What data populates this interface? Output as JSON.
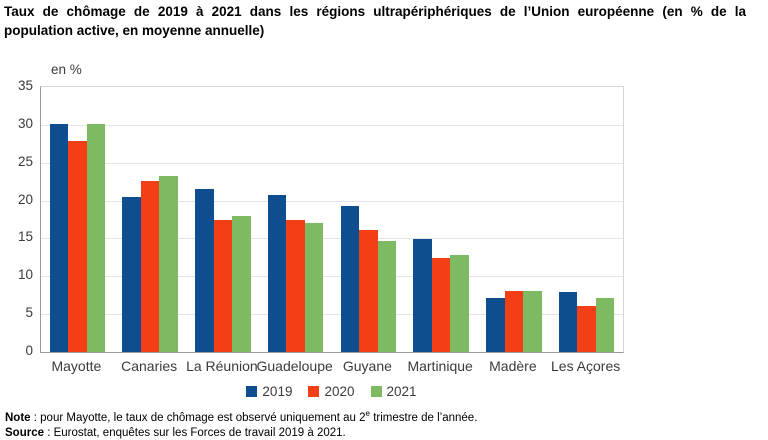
{
  "title": {
    "line1": "Taux de chômage de 2019 à 2021 dans les régions ultrapériphériques de l’Union européenne (en % de la",
    "line2": "population active, en moyenne annuelle)"
  },
  "chart_data": {
    "type": "bar",
    "title": "Taux de chômage de 2019 à 2021 dans les régions ultrapériphériques de l’Union européenne (en % de la population active, en moyenne annuelle)",
    "unit_label": "en %",
    "categories": [
      "Mayotte",
      "Canaries",
      "La Réunion",
      "Guadeloupe",
      "Guyane",
      "Martinique",
      "Madère",
      "Les Açores"
    ],
    "series": [
      {
        "name": "2019",
        "color": "#0E4D8E",
        "values": [
          30.1,
          20.5,
          21.5,
          20.7,
          19.3,
          14.9,
          7.1,
          7.9
        ]
      },
      {
        "name": "2020",
        "color": "#F43E16",
        "values": [
          27.9,
          22.6,
          17.4,
          17.5,
          16.1,
          12.4,
          8.1,
          6.1
        ]
      },
      {
        "name": "2021",
        "color": "#7DBA61",
        "values": [
          30.1,
          23.2,
          17.9,
          17.1,
          14.6,
          12.8,
          8.0,
          7.2
        ]
      }
    ],
    "ylim": [
      0,
      35
    ],
    "yticks": [
      0,
      5,
      10,
      15,
      20,
      25,
      30,
      35
    ],
    "grid": true,
    "legend_position": "bottom",
    "xlabel": "",
    "ylabel": "en %"
  },
  "footer": {
    "note_label": "Note",
    "note_text": " : pour Mayotte, le taux de chômage est observé uniquement au 2",
    "note_sup": "e",
    "note_text_end": " trimestre de l’année.",
    "source_label": "Source",
    "source_text": " : Eurostat, enquêtes sur les Forces de travail 2019 à 2021."
  }
}
